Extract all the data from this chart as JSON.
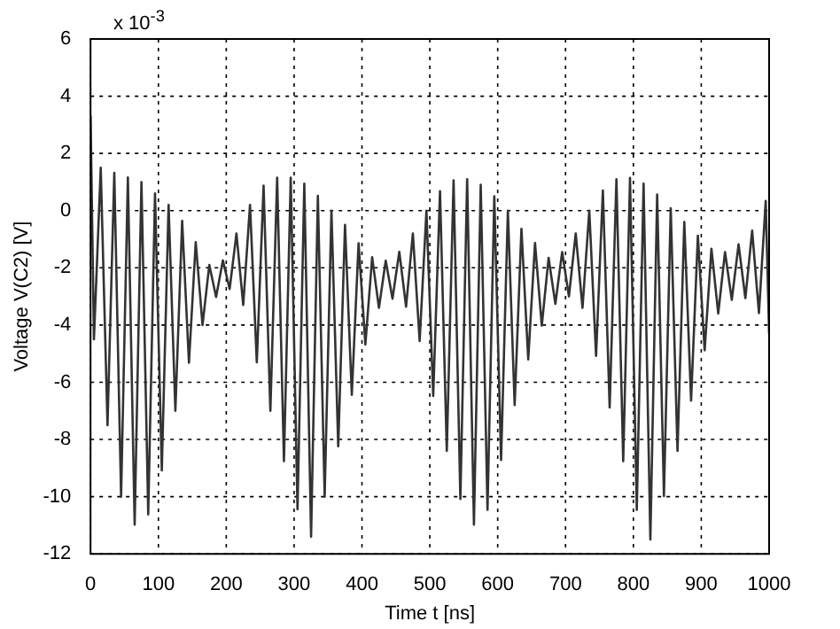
{
  "chart_data": {
    "type": "line",
    "xlabel": "Time t [ns]",
    "ylabel": "Voltage V(C2) [V]",
    "annotations": [
      "x 10$^{-3}$"
    ],
    "x": [
      0,
      5,
      15,
      25,
      35,
      45,
      55,
      65,
      75,
      85,
      95,
      105,
      115,
      125,
      135,
      145,
      155,
      165,
      175,
      185,
      195,
      205,
      215,
      225,
      235,
      245,
      255,
      265,
      275,
      285,
      295,
      305,
      315,
      325,
      335,
      345,
      355,
      365,
      375,
      385,
      395,
      405,
      415,
      425,
      435,
      445,
      455,
      465,
      475,
      485,
      495,
      505,
      515,
      525,
      535,
      545,
      555,
      565,
      575,
      585,
      595,
      605,
      615,
      625,
      635,
      645,
      655,
      665,
      675,
      685,
      695,
      705,
      715,
      725,
      735,
      745,
      755,
      765,
      775,
      785,
      795,
      805,
      815,
      825,
      835,
      845,
      855,
      865,
      875,
      885,
      895,
      905,
      915,
      925,
      935,
      945,
      955,
      965,
      975,
      985,
      995,
      1000
    ],
    "series": [
      {
        "color": "#333333",
        "values": [
          3.3,
          -4.5,
          1.5,
          -7.5,
          1.32,
          -10.0,
          1.16,
          -10.98,
          1.0,
          -10.62,
          0.6,
          -9.08,
          0.2,
          -7.0,
          -0.36,
          -5.32,
          -1.1,
          -4.0,
          -1.9,
          -3.02,
          -1.74,
          -2.74,
          -0.8,
          -3.3,
          0.2,
          -5.3,
          0.87,
          -7.0,
          1.15,
          -8.76,
          1.15,
          -10.44,
          0.94,
          -11.4,
          0.52,
          -10.0,
          0.0,
          -8.24,
          -0.5,
          -6.44,
          -1.14,
          -4.68,
          -1.63,
          -3.4,
          -1.75,
          -3.08,
          -1.44,
          -3.36,
          -0.8,
          -4.56,
          0.0,
          -6.48,
          0.68,
          -8.4,
          1.06,
          -10.08,
          1.1,
          -10.98,
          0.9,
          -10.46,
          0.5,
          -8.72,
          0.0,
          -6.8,
          -0.64,
          -5.2,
          -1.13,
          -4.02,
          -1.65,
          -3.26,
          -1.45,
          -3.0,
          -0.8,
          -3.4,
          0.0,
          -5.08,
          0.7,
          -6.88,
          1.1,
          -8.76,
          1.14,
          -10.46,
          0.94,
          -11.5,
          0.56,
          -9.98,
          0.08,
          -8.4,
          -0.4,
          -6.64,
          -0.88,
          -4.88,
          -1.33,
          -3.6,
          -1.45,
          -3.12,
          -1.18,
          -3.06,
          -0.7,
          -3.58,
          0.34,
          -4.3
        ]
      }
    ],
    "xlim": [
      0,
      1000
    ],
    "xticks": [
      0,
      100,
      200,
      300,
      400,
      500,
      600,
      700,
      800,
      900,
      1000
    ],
    "ylim": [
      -12,
      6
    ],
    "yticks": [
      -12,
      -10,
      -8,
      -6,
      -4,
      -2,
      0,
      2,
      4,
      6
    ],
    "grid": true
  }
}
